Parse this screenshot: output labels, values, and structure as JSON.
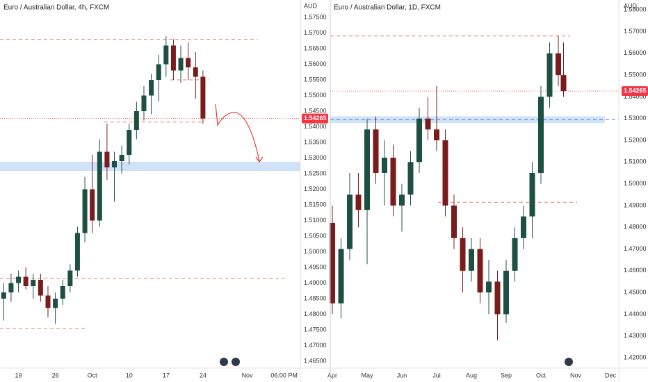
{
  "chart_data": [
    {
      "type": "candlestick",
      "title": "Euro / Australian Dollar, 4h, FXCM",
      "y_axis_label": "AUD",
      "xlim": [
        -2.5,
        38.2
      ],
      "xticks": [
        {
          "value": 0,
          "label": "19"
        },
        {
          "value": 5,
          "label": "26"
        },
        {
          "value": 10,
          "label": "Oct"
        },
        {
          "value": 15,
          "label": "10"
        },
        {
          "value": 20,
          "label": "17"
        },
        {
          "value": 25,
          "label": "24"
        },
        {
          "value": 31,
          "label": "Nov"
        },
        {
          "value": 36,
          "label": "06:00 PM"
        }
      ],
      "ylim": [
        1.46278,
        1.58056
      ],
      "yticks": [
        {
          "value": 1.575,
          "label": "1.57500"
        },
        {
          "value": 1.57,
          "label": "1.57000"
        },
        {
          "value": 1.565,
          "label": "1.56500"
        },
        {
          "value": 1.56,
          "label": "1.56000"
        },
        {
          "value": 1.555,
          "label": "1.55500"
        },
        {
          "value": 1.55,
          "label": "1.55000"
        },
        {
          "value": 1.545,
          "label": "1.54500"
        },
        {
          "value": 1.54,
          "label": "1.54000"
        },
        {
          "value": 1.535,
          "label": "1.53500"
        },
        {
          "value": 1.53,
          "label": "1.53000"
        },
        {
          "value": 1.525,
          "label": "1.52500"
        },
        {
          "value": 1.52,
          "label": "1.52000"
        },
        {
          "value": 1.515,
          "label": "1.51500"
        },
        {
          "value": 1.51,
          "label": "1.51000"
        },
        {
          "value": 1.505,
          "label": "1.50500"
        },
        {
          "value": 1.5,
          "label": "1.50000"
        },
        {
          "value": 1.495,
          "label": "1.49500"
        },
        {
          "value": 1.49,
          "label": "1.49000"
        },
        {
          "value": 1.485,
          "label": "1.48500"
        },
        {
          "value": 1.48,
          "label": "1.48000"
        },
        {
          "value": 1.475,
          "label": "1.47500"
        },
        {
          "value": 1.47,
          "label": "1.47000"
        },
        {
          "value": 1.465,
          "label": "1.46500"
        }
      ],
      "up_color": "#1d4f42",
      "down_color": "#7a1c1c",
      "candles": {
        "x": [
          -2,
          -1,
          0,
          1,
          2,
          3,
          4,
          5,
          6,
          7,
          8,
          9,
          10,
          11,
          12,
          13,
          14,
          15,
          16,
          17,
          18,
          19,
          20,
          21,
          22,
          23,
          24,
          25
        ],
        "open": [
          1.485,
          1.487,
          1.49,
          1.492,
          1.489,
          1.491,
          1.486,
          1.482,
          1.485,
          1.489,
          1.494,
          1.506,
          1.52,
          1.51,
          1.532,
          1.527,
          1.529,
          1.531,
          1.539,
          1.545,
          1.55,
          1.555,
          1.56,
          1.566,
          1.558,
          1.562,
          1.559,
          1.556
        ],
        "high": [
          1.49,
          1.493,
          1.494,
          1.495,
          1.493,
          1.493,
          1.489,
          1.487,
          1.491,
          1.496,
          1.508,
          1.524,
          1.531,
          1.536,
          1.541,
          1.532,
          1.534,
          1.541,
          1.548,
          1.553,
          1.557,
          1.563,
          1.569,
          1.568,
          1.566,
          1.567,
          1.564,
          1.558
        ],
        "low": [
          1.478,
          1.484,
          1.487,
          1.488,
          1.485,
          1.484,
          1.479,
          1.477,
          1.483,
          1.487,
          1.492,
          1.503,
          1.506,
          1.508,
          1.523,
          1.516,
          1.525,
          1.528,
          1.536,
          1.542,
          1.544,
          1.548,
          1.556,
          1.555,
          1.554,
          1.555,
          1.549,
          1.541
        ],
        "close": [
          1.487,
          1.49,
          1.492,
          1.489,
          1.491,
          1.486,
          1.482,
          1.485,
          1.489,
          1.494,
          1.506,
          1.52,
          1.51,
          1.532,
          1.527,
          1.529,
          1.531,
          1.539,
          1.545,
          1.55,
          1.555,
          1.56,
          1.566,
          1.558,
          1.562,
          1.559,
          1.556,
          1.54265
        ]
      },
      "last_price": 1.54265,
      "levels": [
        {
          "value": 1.568,
          "from": -2.5,
          "to": 32.4,
          "color": "#f07c6c"
        },
        {
          "value": 1.5415,
          "from": 11.6,
          "to": 24.8,
          "color": "#f07c6c"
        },
        {
          "value": 1.555,
          "from": 20.6,
          "to": 25.8,
          "color": "#f07c6c"
        },
        {
          "value": 1.4915,
          "from": -2.5,
          "to": 36.1,
          "color": "#f07c6c"
        },
        {
          "value": 1.4755,
          "from": -2.5,
          "to": 9.2,
          "color": "#f07c6c"
        }
      ],
      "zones": [
        {
          "low": 1.5259,
          "high": 1.5288,
          "from": -2.5,
          "to": 38.2,
          "color": "#cfe2f8"
        }
      ]
    },
    {
      "type": "candlestick",
      "title": "Euro / Australian Dollar, 1D, FXCM",
      "y_axis_label": "AUD",
      "xlim": [
        -0.06,
        8.24
      ],
      "xticks": [
        {
          "value": 0,
          "label": "Apr"
        },
        {
          "value": 1,
          "label": "May"
        },
        {
          "value": 2,
          "label": "Jun"
        },
        {
          "value": 3,
          "label": "Jul"
        },
        {
          "value": 4,
          "label": "Aug"
        },
        {
          "value": 5,
          "label": "Sep"
        },
        {
          "value": 6,
          "label": "Oct"
        },
        {
          "value": 7,
          "label": "Nov"
        },
        {
          "value": 8,
          "label": "Dec"
        }
      ],
      "ylim": [
        1.41521,
        1.58454
      ],
      "yticks": [
        {
          "value": 1.58,
          "label": "1.58000"
        },
        {
          "value": 1.57,
          "label": "1.57000"
        },
        {
          "value": 1.56,
          "label": "1.56000"
        },
        {
          "value": 1.55,
          "label": "1.55000"
        },
        {
          "value": 1.54,
          "label": "1.54000"
        },
        {
          "value": 1.53,
          "label": "1.53000"
        },
        {
          "value": 1.52,
          "label": "1.52000"
        },
        {
          "value": 1.51,
          "label": "1.51000"
        },
        {
          "value": 1.5,
          "label": "1.50000"
        },
        {
          "value": 1.49,
          "label": "1.49000"
        },
        {
          "value": 1.48,
          "label": "1.48000"
        },
        {
          "value": 1.47,
          "label": "1.47000"
        },
        {
          "value": 1.46,
          "label": "1.46000"
        },
        {
          "value": 1.45,
          "label": "1.45000"
        },
        {
          "value": 1.44,
          "label": "1.44000"
        },
        {
          "value": 1.43,
          "label": "1.43000"
        },
        {
          "value": 1.42,
          "label": "1.42000"
        }
      ],
      "up_color": "#1d4f42",
      "down_color": "#7a1c1c",
      "candles": {
        "x": [
          0,
          0.25,
          0.5,
          0.75,
          1,
          1.25,
          1.5,
          1.75,
          2,
          2.25,
          2.5,
          2.75,
          3,
          3.25,
          3.5,
          3.75,
          4,
          4.25,
          4.5,
          4.75,
          5,
          5.25,
          5.5,
          5.75,
          6,
          6.25,
          6.5,
          6.65
        ],
        "open": [
          1.482,
          1.445,
          1.47,
          1.495,
          1.488,
          1.525,
          1.505,
          1.512,
          1.49,
          1.495,
          1.51,
          1.53,
          1.525,
          1.52,
          1.49,
          1.475,
          1.46,
          1.47,
          1.45,
          1.455,
          1.44,
          1.46,
          1.475,
          1.485,
          1.505,
          1.54,
          1.56,
          1.55
        ],
        "high": [
          1.49,
          1.475,
          1.505,
          1.505,
          1.53,
          1.531,
          1.52,
          1.518,
          1.5,
          1.515,
          1.535,
          1.54,
          1.545,
          1.525,
          1.495,
          1.48,
          1.475,
          1.475,
          1.465,
          1.46,
          1.465,
          1.48,
          1.49,
          1.51,
          1.545,
          1.565,
          1.568,
          1.565
        ],
        "low": [
          1.44,
          1.438,
          1.465,
          1.48,
          1.463,
          1.5,
          1.49,
          1.485,
          1.478,
          1.49,
          1.505,
          1.52,
          1.515,
          1.485,
          1.47,
          1.45,
          1.455,
          1.445,
          1.44,
          1.428,
          1.436,
          1.455,
          1.47,
          1.475,
          1.5,
          1.535,
          1.545,
          1.54
        ],
        "close": [
          1.445,
          1.47,
          1.495,
          1.488,
          1.525,
          1.505,
          1.512,
          1.49,
          1.495,
          1.51,
          1.53,
          1.525,
          1.52,
          1.49,
          1.475,
          1.46,
          1.47,
          1.45,
          1.455,
          1.44,
          1.46,
          1.475,
          1.485,
          1.505,
          1.54,
          1.56,
          1.55,
          1.54265
        ]
      },
      "last_price": 1.54265,
      "levels": [
        {
          "value": 1.568,
          "from": -0.06,
          "to": 6.84,
          "color": "#f07c6c"
        },
        {
          "value": 1.4915,
          "from": 3.04,
          "to": 7.04,
          "color": "#f07c6c"
        },
        {
          "value": 1.5295,
          "from": -0.06,
          "to": 8.24,
          "color": "#3f7fd0"
        }
      ],
      "zones": [
        {
          "low": 1.528,
          "high": 1.531,
          "from": -0.06,
          "to": 7.84,
          "color": "#cfe2f8"
        }
      ]
    }
  ]
}
